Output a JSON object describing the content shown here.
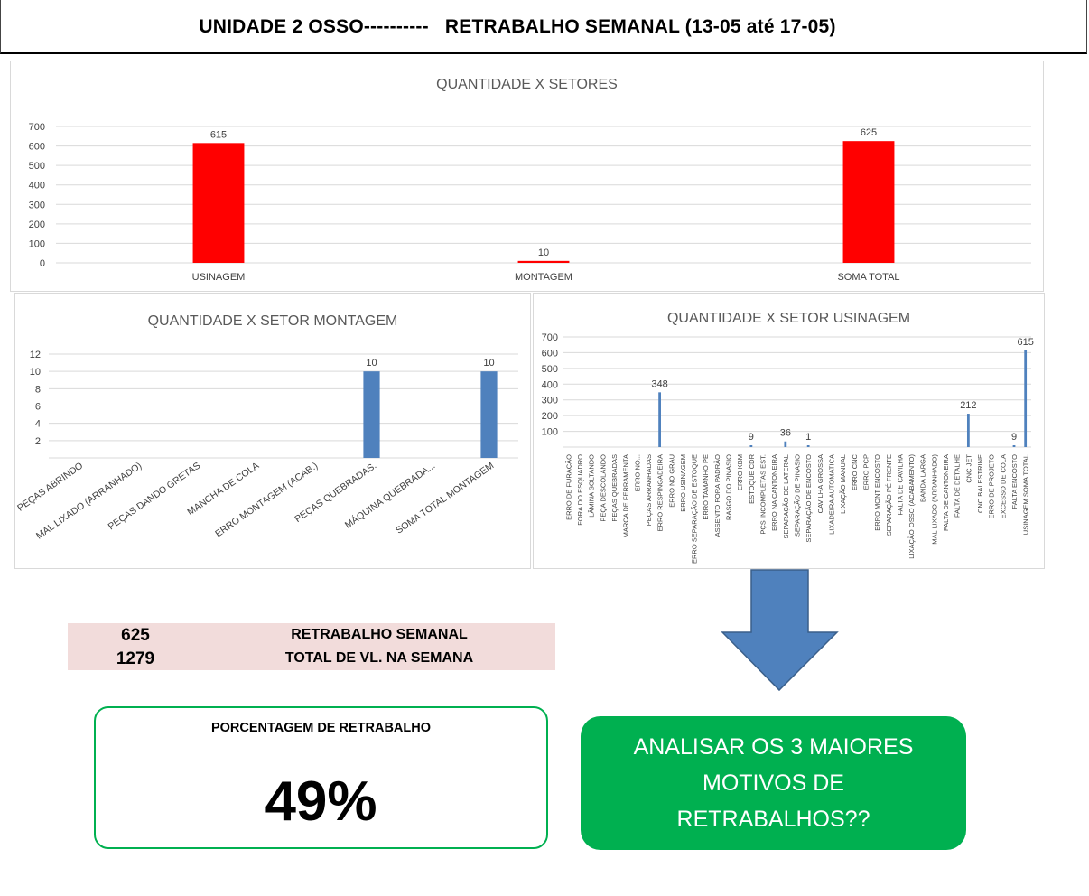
{
  "header": {
    "title": "UNIDADE 2 OSSO----------   RETRABALHO SEMANAL (13-05 até 17-05)"
  },
  "chart_data": [
    {
      "type": "bar",
      "title": "QUANTIDADE X SETORES",
      "categories": [
        "USINAGEM",
        "MONTAGEM",
        "SOMA TOTAL"
      ],
      "values": [
        615,
        10,
        625
      ],
      "data_labels": [
        "615",
        "10",
        "625"
      ],
      "yticks": [
        0,
        100,
        200,
        300,
        400,
        500,
        600,
        700
      ],
      "ylim": [
        0,
        700
      ],
      "color": "#ff0000",
      "grid": true
    },
    {
      "type": "bar",
      "title": "QUANTIDADE X SETOR MONTAGEM",
      "categories": [
        "PEÇAS ABRINDO",
        "MAL LIXADO (ARRANHADO)",
        "PEÇAS DANDO GRETAS",
        "MANCHA DE COLA",
        "ERRO MONTAGEM (ACAB.)",
        "PEÇAS QUEBRADAS.",
        "MÁQUINA QUEBRADA...",
        "SOMA TOTAL MONTAGEM"
      ],
      "values": [
        0,
        0,
        0,
        0,
        0,
        10,
        0,
        10
      ],
      "data_labels": [
        "",
        "",
        "",
        "",
        "",
        "10",
        "",
        "10"
      ],
      "yticks": [
        2,
        4,
        6,
        8,
        10,
        12
      ],
      "ylim": [
        0,
        12
      ],
      "color": "#4f81bd",
      "grid": true
    },
    {
      "type": "bar",
      "title": "QUANTIDADE X SETOR USINAGEM",
      "categories": [
        "ERRO DE FURAÇÃO",
        "FORA DO ESQUADRO",
        "LÂMINA SOLTANDO",
        "PEÇA DESCOLANDO",
        "PEÇAS QUEBRADAS",
        "MARCA DE FERRAMENTA",
        "ERRO NO...",
        "PEÇAS ARRANHADAS",
        "ERRO RESPINGADEIRA",
        "ERRO NO GRAU",
        "ERRO USINAGEM",
        "ERRO SEPARAÇÃO DE ESTOQUE",
        "ERRO TAMANHO PE",
        "ASSENTO FORA PADRÃO",
        "RASGO DO PINASIO",
        "ERRO KBM",
        "ESTOQUE CDR",
        "PÇS INCOMPLETAS EST.",
        "ERRO NA CANTONEIRA",
        "SEPARAÇÃO DE LATERAL",
        "SEPARAÇÃO DE PINASIO",
        "SEPARAÇÃO DE ENCOSTO",
        "CAVILHA GROSSA",
        "LIXADEIRA AUTOMATICA",
        "LIXAÇÃO MANUAL",
        "ERRO CNC",
        "ERRO PCP",
        "ERRO MONT ENCOSTO",
        "SEPARAÇÃO PÉ FRENTE",
        "FALTA DE CAVILHA",
        "LIXAÇÃO OSSO (ACABAMENTO)",
        "BANDA LARGA",
        "MAL LIXADO (ARRANHADO)",
        "FALTA DE CANTONEIRA",
        "FALTA DE DETALHE",
        "CNC JET",
        "CNC BALESTRINE",
        "ERRO DE PROJETO",
        "EXCESSO DE COLA",
        "FALTA ENCOSTO",
        "USINAGEM SOMA TOTAL"
      ],
      "values": [
        0,
        0,
        0,
        0,
        0,
        0,
        0,
        0,
        348,
        0,
        0,
        0,
        0,
        0,
        0,
        0,
        9,
        0,
        0,
        36,
        0,
        1,
        0,
        0,
        0,
        0,
        0,
        0,
        0,
        0,
        0,
        0,
        0,
        0,
        0,
        212,
        0,
        0,
        0,
        9,
        615
      ],
      "data_labels": [
        "",
        "",
        "",
        "",
        "",
        "",
        "",
        "",
        "348",
        "",
        "",
        "",
        "",
        "",
        "",
        "",
        "9",
        "",
        "",
        "36",
        "",
        "1",
        "",
        "",
        "",
        "",
        "",
        "",
        "",
        "",
        "",
        "",
        "",
        "",
        "",
        "212",
        "",
        "",
        "",
        "9",
        "615"
      ],
      "yticks": [
        100,
        200,
        300,
        400,
        500,
        600,
        700
      ],
      "ylim": [
        0,
        700
      ],
      "color": "#4f81bd",
      "grid": true
    }
  ],
  "summary": {
    "rows": [
      {
        "value": "625",
        "label": "RETRABALHO SEMANAL"
      },
      {
        "value": "1279",
        "label": "TOTAL DE VL. NA SEMANA"
      }
    ]
  },
  "percentage": {
    "title": "PORCENTAGEM DE RETRABALHO",
    "value": "49%"
  },
  "callout": {
    "text": "ANALISAR OS 3 MAIORES MOTIVOS DE RETRABALHOS??"
  },
  "colors": {
    "bar_red": "#ff0000",
    "bar_blue": "#4f81bd",
    "accent_green": "#00b050",
    "summary_bg": "#f2dcdb",
    "arrow": "#4f81bd"
  }
}
